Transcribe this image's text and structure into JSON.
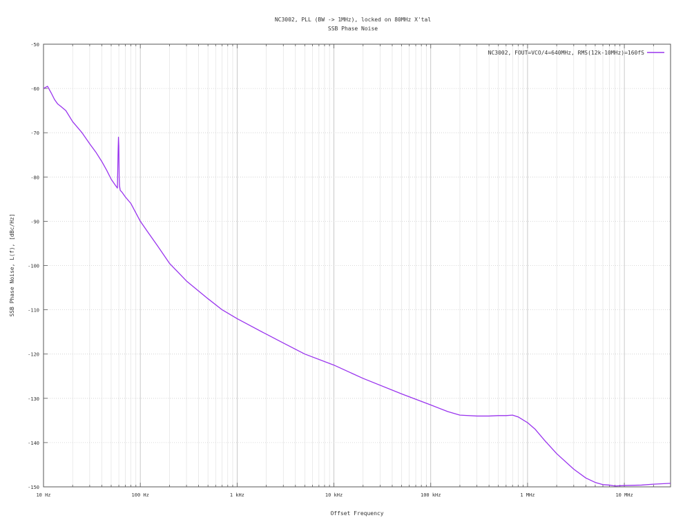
{
  "chart_data": {
    "type": "line",
    "title": "NC3002, PLL (BW -> 1MHz), locked on 80MHz X'tal",
    "subtitle": "SSB Phase Noise",
    "xlabel": "Offset Frequency",
    "ylabel": "SSB Phase Noise, L(f), [dBc/Hz]",
    "x_scale": "log",
    "xlim": [
      10,
      30000000
    ],
    "ylim": [
      -150,
      -50
    ],
    "grid": true,
    "legend_position": "top-right",
    "x_ticks": [
      {
        "value": 10,
        "label": "10 Hz"
      },
      {
        "value": 100,
        "label": "100 Hz"
      },
      {
        "value": 1000,
        "label": "1 kHz"
      },
      {
        "value": 10000,
        "label": "10 kHz"
      },
      {
        "value": 100000,
        "label": "100 kHz"
      },
      {
        "value": 1000000,
        "label": "1 MHz"
      },
      {
        "value": 10000000,
        "label": "10 MHz"
      }
    ],
    "y_ticks": [
      {
        "value": -50,
        "label": "-50"
      },
      {
        "value": -60,
        "label": "-60"
      },
      {
        "value": -70,
        "label": "-70"
      },
      {
        "value": -80,
        "label": "-80"
      },
      {
        "value": -90,
        "label": "-90"
      },
      {
        "value": -100,
        "label": "-100"
      },
      {
        "value": -110,
        "label": "-110"
      },
      {
        "value": -120,
        "label": "-120"
      },
      {
        "value": -130,
        "label": "-130"
      },
      {
        "value": -140,
        "label": "-140"
      },
      {
        "value": -150,
        "label": "-150"
      }
    ],
    "series": [
      {
        "name": "NC3002, FOUT=VCO/4=640MHz, RMS(12k-10MHz)=160fS",
        "color": "#9933ee",
        "x": [
          10,
          11,
          12,
          13,
          14,
          15,
          17,
          20,
          25,
          30,
          35,
          40,
          45,
          50,
          55,
          58,
          59,
          59.5,
          60,
          60.5,
          61,
          62,
          65,
          70,
          80,
          100,
          120,
          150,
          200,
          300,
          500,
          700,
          1000,
          2000,
          3000,
          5000,
          10000,
          20000,
          50000,
          100000,
          150000,
          200000,
          300000,
          400000,
          500000,
          600000,
          700000,
          800000,
          1000000,
          1200000,
          1500000,
          2000000,
          3000000,
          4000000,
          5000000,
          6000000,
          7000000,
          8000000,
          10000000,
          15000000,
          20000000,
          30000000
        ],
        "y": [
          -60,
          -59.5,
          -61,
          -62.5,
          -63.5,
          -64,
          -65,
          -67.5,
          -70,
          -72.5,
          -74.5,
          -76.5,
          -78.5,
          -80.5,
          -81.8,
          -82.5,
          -74,
          -71,
          -73,
          -80,
          -82,
          -83,
          -83.5,
          -84.5,
          -86,
          -90,
          -92.5,
          -95.5,
          -99.5,
          -103.5,
          -107.5,
          -110,
          -112,
          -115.5,
          -117.5,
          -120,
          -122.5,
          -125.5,
          -129,
          -131.5,
          -133,
          -133.8,
          -134,
          -134,
          -133.9,
          -133.9,
          -133.8,
          -134.2,
          -135.5,
          -137,
          -139.5,
          -142.5,
          -146,
          -148,
          -149,
          -149.5,
          -149.6,
          -149.8,
          -149.7,
          -149.6,
          -149.4,
          -149.2
        ]
      }
    ]
  }
}
